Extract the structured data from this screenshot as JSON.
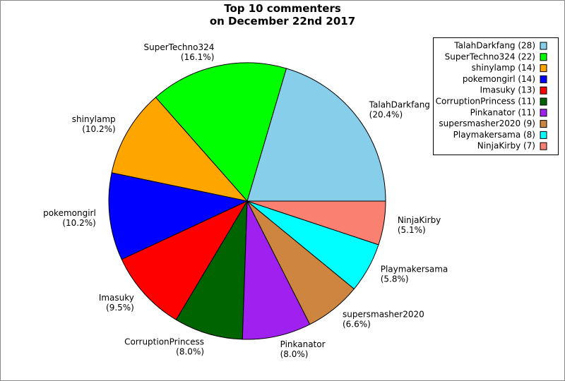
{
  "chart_data": {
    "type": "pie",
    "title": "Top 10 commenters\non December 22nd 2017",
    "categories": [
      "TalahDarkfang",
      "SuperTechno324",
      "shinylamp",
      "pokemongirl",
      "Imasuky",
      "CorruptionPrincess",
      "Pinkanator",
      "supersmasher2020",
      "Playmakersama",
      "NinjaKirby"
    ],
    "values": [
      28,
      22,
      14,
      14,
      13,
      11,
      11,
      9,
      8,
      7
    ],
    "value_labels": [
      "(20.4%)",
      "(16.1%)",
      "(10.2%)",
      "(10.2%)",
      "(9.5%)",
      "(8.0%)",
      "(8.0%)",
      "(6.6%)",
      "(5.8%)",
      "(5.1%)"
    ],
    "legend_labels": [
      "TalahDarkfang (28)",
      "SuperTechno324 (22)",
      "shinylamp (14)",
      "pokemongirl (14)",
      "Imasuky (13)",
      "CorruptionPrincess (11)",
      "Pinkanator (11)",
      "supersmasher2020 (9)",
      "Playmakersama (8)",
      "NinjaKirby (7)"
    ],
    "colors": [
      "#87ceeb",
      "#00ff00",
      "#ffa500",
      "#0000ff",
      "#ff0000",
      "#006400",
      "#a020f0",
      "#cd853f",
      "#00ffff",
      "#fa8072"
    ],
    "legend_position": "upper right"
  }
}
